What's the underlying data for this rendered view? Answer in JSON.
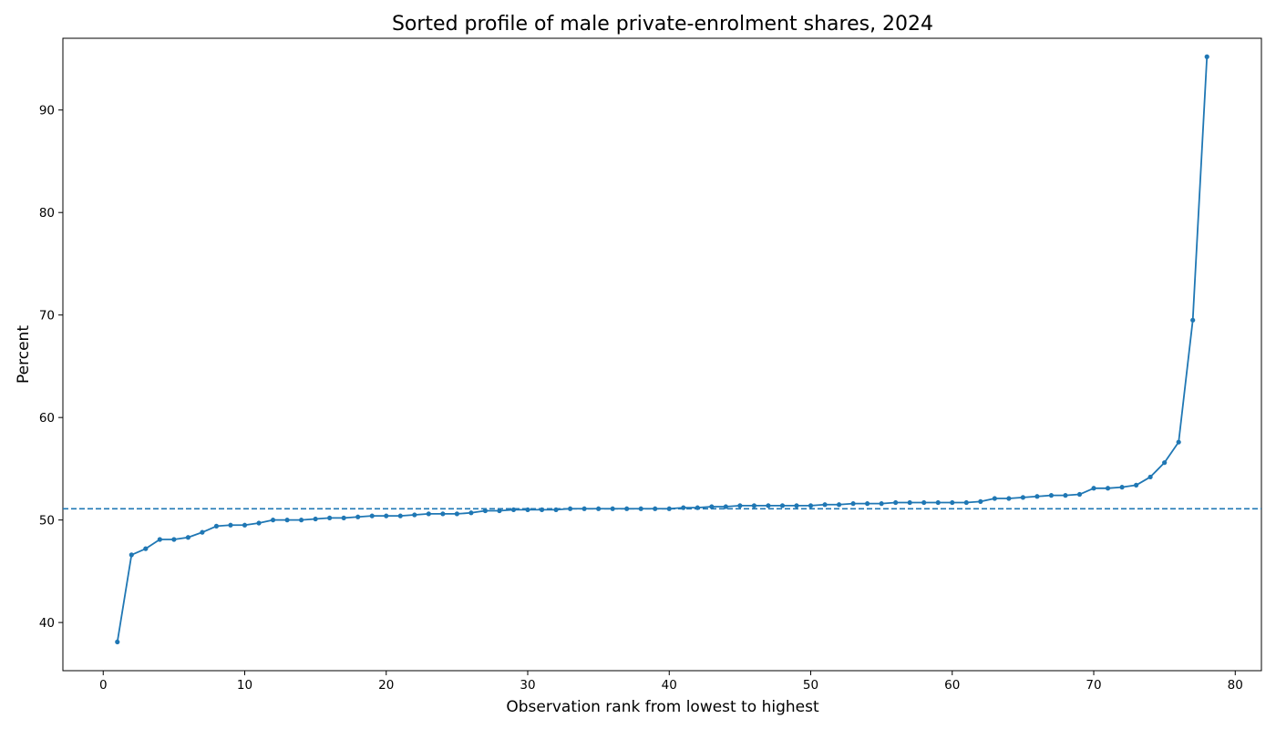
{
  "chart_data": {
    "type": "line",
    "title": "Sorted profile of male private-enrolment shares, 2024",
    "xlabel": "Observation rank from lowest to highest",
    "ylabel": "Percent",
    "xlim": [
      -2.85,
      81.85
    ],
    "ylim": [
      35.3,
      97.0
    ],
    "x_ticks": [
      0,
      10,
      20,
      30,
      40,
      50,
      60,
      70,
      80
    ],
    "y_ticks": [
      40,
      50,
      60,
      70,
      80,
      90
    ],
    "grid": false,
    "legend": "none",
    "reference_line": {
      "y": 51.1,
      "style": "dashed",
      "color": "#1f77b4"
    },
    "series": [
      {
        "color": "#1f77b4",
        "marker": "circle",
        "x": [
          1,
          2,
          3,
          4,
          5,
          6,
          7,
          8,
          9,
          10,
          11,
          12,
          13,
          14,
          15,
          16,
          17,
          18,
          19,
          20,
          21,
          22,
          23,
          24,
          25,
          26,
          27,
          28,
          29,
          30,
          31,
          32,
          33,
          34,
          35,
          36,
          37,
          38,
          39,
          40,
          41,
          42,
          43,
          44,
          45,
          46,
          47,
          48,
          49,
          50,
          51,
          52,
          53,
          54,
          55,
          56,
          57,
          58,
          59,
          60,
          61,
          62,
          63,
          64,
          65,
          66,
          67,
          68,
          69,
          70,
          71,
          72,
          73,
          74,
          75,
          76,
          77,
          78
        ],
        "values": [
          38.1,
          46.6,
          47.2,
          48.1,
          48.1,
          48.3,
          48.8,
          49.4,
          49.5,
          49.5,
          49.7,
          50.0,
          50.0,
          50.0,
          50.1,
          50.2,
          50.2,
          50.3,
          50.4,
          50.4,
          50.4,
          50.5,
          50.6,
          50.6,
          50.6,
          50.7,
          50.9,
          50.9,
          51.0,
          51.0,
          51.0,
          51.0,
          51.1,
          51.1,
          51.1,
          51.1,
          51.1,
          51.1,
          51.1,
          51.1,
          51.2,
          51.2,
          51.3,
          51.3,
          51.4,
          51.4,
          51.4,
          51.4,
          51.4,
          51.4,
          51.5,
          51.5,
          51.6,
          51.6,
          51.6,
          51.7,
          51.7,
          51.7,
          51.7,
          51.7,
          51.7,
          51.8,
          52.1,
          52.1,
          52.2,
          52.3,
          52.4,
          52.4,
          52.5,
          53.1,
          53.1,
          53.2,
          53.4,
          54.2,
          55.6,
          57.6,
          69.5,
          95.2
        ]
      }
    ]
  }
}
